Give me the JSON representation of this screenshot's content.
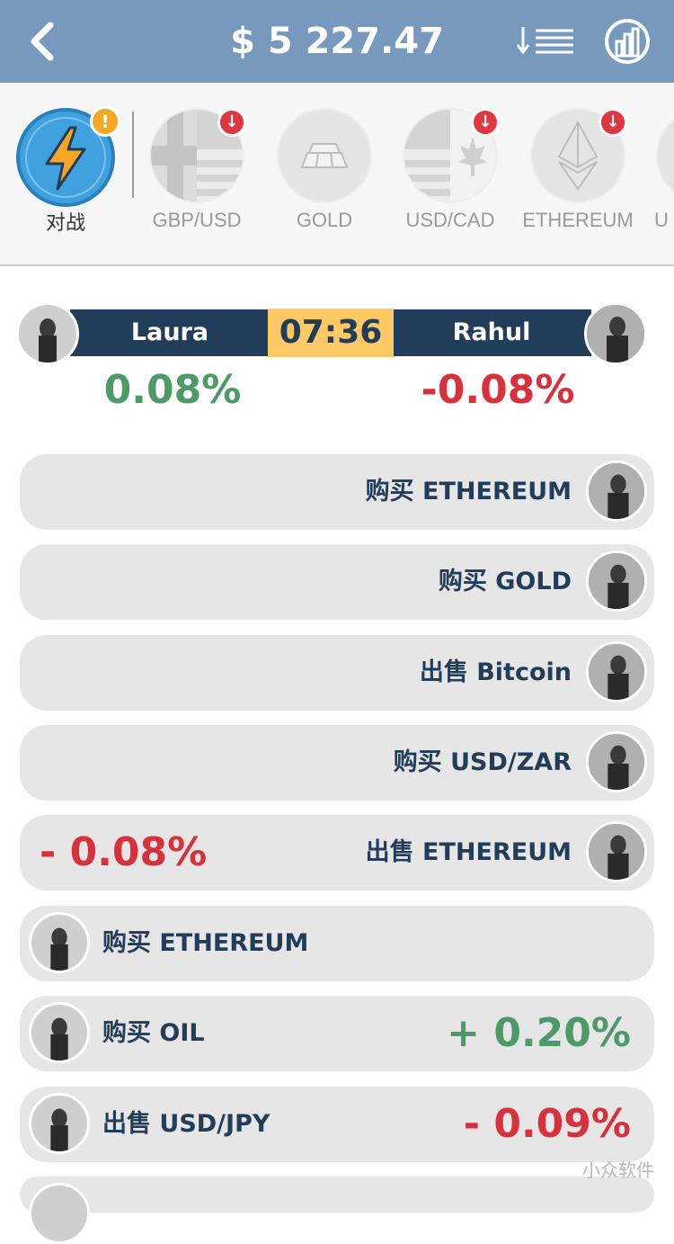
{
  "header": {
    "balance": "$ 5 227.47",
    "back_icon": "chevron-left-icon",
    "sort_icon": "sort-list-icon",
    "stats_icon": "bar-chart-icon"
  },
  "assets": {
    "battle": {
      "label": "对战",
      "badge": "!"
    },
    "items": [
      {
        "label": "GBP/USD",
        "badge": "↓"
      },
      {
        "label": "GOLD",
        "badge": ""
      },
      {
        "label": "USD/CAD",
        "badge": "↓"
      },
      {
        "label": "ETHEREUM",
        "badge": "↓"
      },
      {
        "label": "U",
        "badge": ""
      }
    ]
  },
  "duel": {
    "left_name": "Laura",
    "right_name": "Rahul",
    "timer": "07:36",
    "left_pct": "0.08%",
    "right_pct": "-0.08%"
  },
  "feed": [
    {
      "side": "right",
      "text": "购买 ETHEREUM",
      "pct": ""
    },
    {
      "side": "right",
      "text": "购买 GOLD",
      "pct": ""
    },
    {
      "side": "right",
      "text": "出售 Bitcoin",
      "pct": ""
    },
    {
      "side": "right",
      "text": "购买 USD/ZAR",
      "pct": ""
    },
    {
      "side": "right",
      "text": "出售 ETHEREUM",
      "pct": "- 0.08%"
    },
    {
      "side": "left",
      "text": "购买 ETHEREUM",
      "pct": ""
    },
    {
      "side": "left",
      "text": "购买 OIL",
      "pct": "+ 0.20%"
    },
    {
      "side": "left",
      "text": "出售 USD/JPY",
      "pct": "- 0.09%"
    }
  ],
  "watermark": "小众软件",
  "colors": {
    "header_bg": "#7699bd",
    "navy": "#213d5a",
    "timer_bg": "#ffc966",
    "positive": "#4c9a68",
    "negative": "#d9313c"
  }
}
